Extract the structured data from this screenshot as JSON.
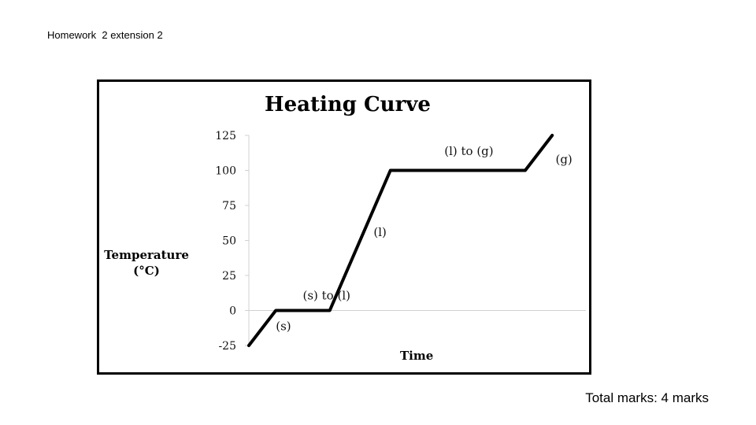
{
  "page": {
    "title": "Homework  2 extension 2",
    "total_marks": "Total marks: 4 marks"
  },
  "chart_data": {
    "type": "line",
    "title": "Heating Curve",
    "ylabel_lines": [
      "Temperature",
      "(°C)"
    ],
    "xlabel": "Time",
    "yticks": [
      125,
      100,
      75,
      50,
      25,
      0,
      -25
    ],
    "ylim": [
      -25,
      125
    ],
    "xlim": [
      0,
      10
    ],
    "grid": false,
    "zero_line": true,
    "series": [
      {
        "x": [
          0,
          0.8,
          2.4,
          4.2,
          8.2,
          9.0
        ],
        "y": [
          -25,
          0,
          0,
          100,
          100,
          125
        ]
      }
    ],
    "annotations": [
      {
        "text": "(s)",
        "x": 0.8,
        "y": -14
      },
      {
        "text": "(s) to (l)",
        "x": 1.6,
        "y": 8
      },
      {
        "text": "(l)",
        "x": 3.7,
        "y": 53
      },
      {
        "text": "(l) to (g)",
        "x": 5.8,
        "y": 111
      },
      {
        "text": "(g)",
        "x": 9.1,
        "y": 105
      }
    ]
  }
}
